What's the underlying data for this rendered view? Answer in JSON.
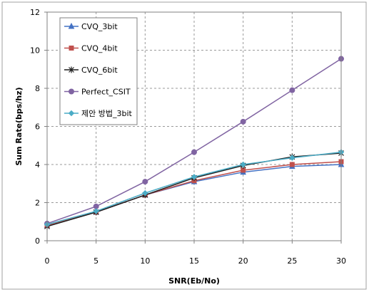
{
  "chart_data": {
    "type": "line",
    "title": "",
    "xlabel": "SNR(Eb/No)",
    "ylabel": "Sum Rate(bps/hz)",
    "x": [
      0,
      5,
      10,
      15,
      20,
      25,
      30
    ],
    "xlim": [
      0,
      30
    ],
    "ylim": [
      0,
      12
    ],
    "x_ticks": [
      "0",
      "5",
      "10",
      "15",
      "20",
      "25",
      "30"
    ],
    "y_ticks": [
      "0",
      "2",
      "4",
      "6",
      "8",
      "10",
      "12"
    ],
    "grid": true,
    "legend_position": "top-left",
    "series": [
      {
        "name": "CVQ_3bit",
        "values": [
          0.8,
          1.5,
          2.4,
          3.1,
          3.6,
          3.9,
          4.0
        ],
        "color": "#4472C4",
        "marker": "triangle"
      },
      {
        "name": "CVQ_4bit",
        "values": [
          0.8,
          1.5,
          2.4,
          3.15,
          3.7,
          4.0,
          4.15
        ],
        "color": "#C0504D",
        "marker": "square"
      },
      {
        "name": "CVQ_6bit",
        "values": [
          0.75,
          1.5,
          2.4,
          3.3,
          3.95,
          4.4,
          4.6
        ],
        "color": "#1F1F1F",
        "marker": "star"
      },
      {
        "name": "Perfect_CSIT",
        "values": [
          0.9,
          1.8,
          3.1,
          4.65,
          6.25,
          7.9,
          9.55
        ],
        "color": "#8064A2",
        "marker": "circle"
      },
      {
        "name": "제안 방법_3bit",
        "values": [
          0.85,
          1.55,
          2.5,
          3.35,
          4.0,
          4.35,
          4.65
        ],
        "color": "#4BACC6",
        "marker": "diamond"
      }
    ]
  }
}
